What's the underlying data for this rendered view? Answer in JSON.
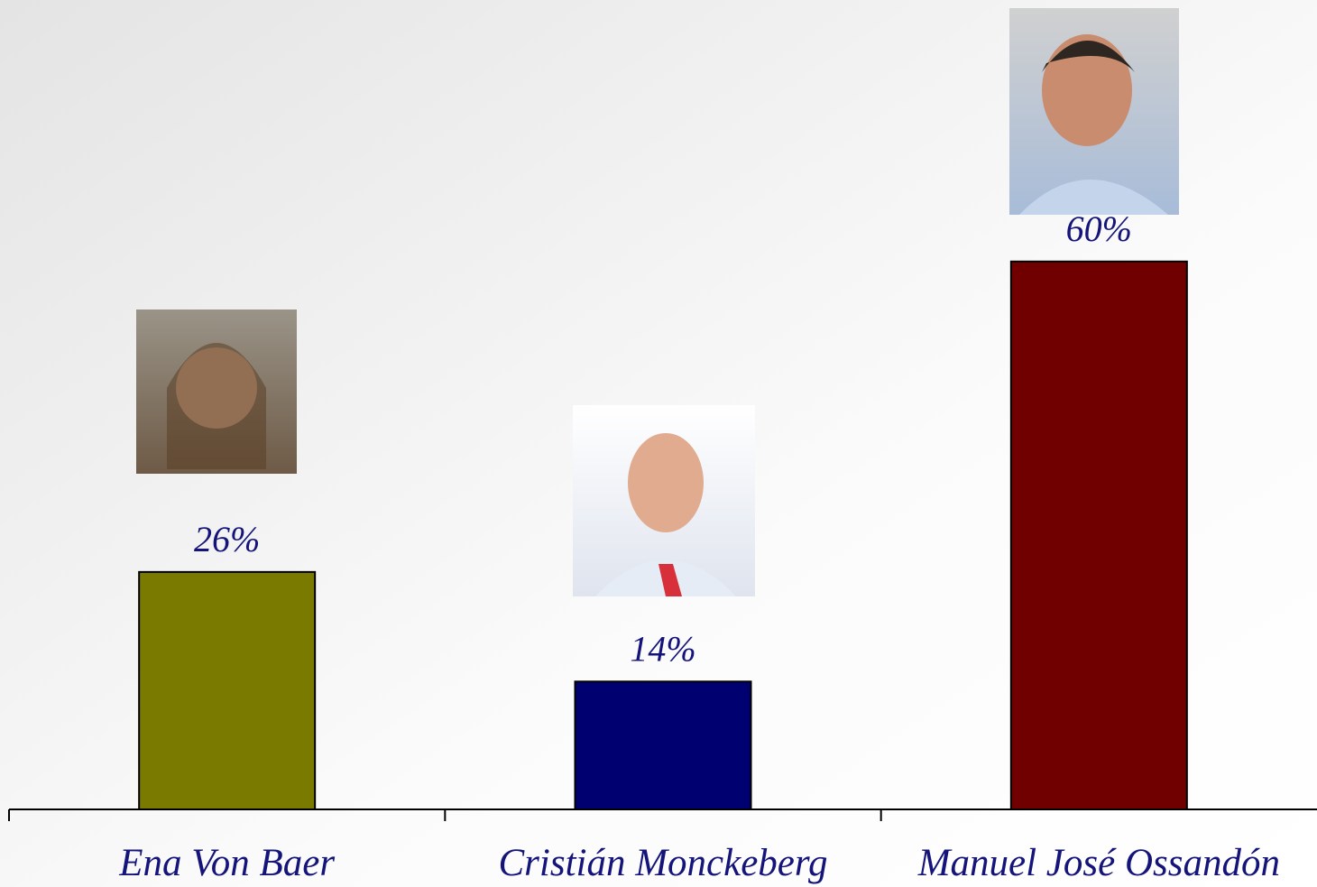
{
  "chart_data": {
    "type": "bar",
    "categories": [
      "Ena Von Baer",
      "Cristián Monckeberg",
      "Manuel José Ossandón"
    ],
    "series": [
      {
        "colors": [
          "#7a7a00",
          "#000070",
          "#700000"
        ],
        "values": [
          26,
          14,
          60
        ],
        "value_labels": [
          "26%",
          "14%",
          "60%"
        ]
      }
    ]
  }
}
